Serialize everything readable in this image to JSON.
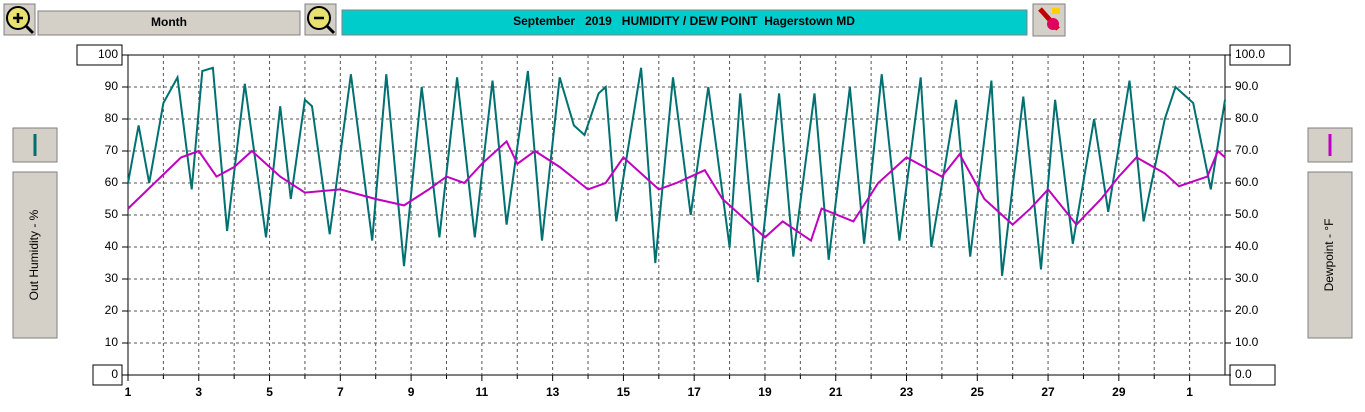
{
  "toolbar": {
    "period": "Month"
  },
  "chart_data": {
    "type": "line",
    "title": "September   2019   HUMIDITY / DEW POINT  Hagerstown MD",
    "ylabel": "Out Humidity - %",
    "y2label": "Dewpoint - °F",
    "xlim": [
      1,
      32
    ],
    "xticks": [
      1,
      3,
      5,
      7,
      9,
      11,
      13,
      15,
      17,
      19,
      21,
      23,
      25,
      27,
      29,
      {
        "value": 31,
        "label": "1"
      }
    ],
    "xminor_ticks": [
      2,
      4,
      6,
      8,
      10,
      12,
      14,
      16,
      18,
      20,
      22,
      24,
      26,
      28,
      30
    ],
    "ylim": [
      0,
      100
    ],
    "yticks": [
      0,
      10,
      20,
      30,
      40,
      50,
      60,
      70,
      80,
      90,
      100
    ],
    "y2lim": [
      0,
      100
    ],
    "y2ticks": [
      {
        "value": 0,
        "label": "0.0"
      },
      {
        "value": 10,
        "label": "10.0"
      },
      {
        "value": 20,
        "label": "20.0"
      },
      {
        "value": 30,
        "label": "30.0"
      },
      {
        "value": 40,
        "label": "40.0"
      },
      {
        "value": 50,
        "label": "50.0"
      },
      {
        "value": 60,
        "label": "60.0"
      },
      {
        "value": 70,
        "label": "70.0"
      },
      {
        "value": 80,
        "label": "80.0"
      },
      {
        "value": 90,
        "label": "90.0"
      },
      {
        "value": 100,
        "label": "100.0"
      }
    ],
    "grid": true,
    "series": [
      {
        "color": "#007070",
        "x": [
          1.0,
          1.3,
          1.6,
          2.0,
          2.4,
          2.8,
          3.1,
          3.4,
          3.8,
          4.3,
          4.9,
          5.3,
          5.6,
          6.0,
          6.2,
          6.7,
          7.3,
          7.9,
          8.3,
          8.8,
          9.3,
          9.8,
          10.3,
          10.8,
          11.3,
          11.7,
          12.3,
          12.7,
          13.2,
          13.6,
          13.9,
          14.3,
          14.5,
          14.8,
          15.5,
          15.9,
          16.4,
          16.9,
          17.4,
          18.0,
          18.3,
          18.8,
          19.4,
          19.8,
          20.4,
          20.8,
          21.4,
          21.8,
          22.3,
          22.8,
          23.4,
          23.7,
          24.4,
          24.8,
          25.4,
          25.7,
          26.3,
          26.8,
          27.2,
          27.7,
          28.3,
          28.7,
          29.3,
          29.7,
          30.3,
          30.6,
          31.1,
          31.6,
          32.0
        ],
        "values": [
          60,
          78,
          60,
          85,
          93,
          58,
          95,
          96,
          45,
          91,
          43,
          84,
          55,
          86,
          84,
          44,
          94,
          42,
          94,
          34,
          90,
          43,
          93,
          43,
          92,
          47,
          95,
          42,
          93,
          78,
          75,
          88,
          90,
          48,
          96,
          35,
          93,
          50,
          90,
          40,
          88,
          29,
          88,
          37,
          88,
          36,
          90,
          41,
          94,
          42,
          93,
          40,
          86,
          37,
          92,
          31,
          87,
          33,
          86,
          41,
          80,
          51,
          92,
          48,
          80,
          90,
          85,
          58,
          86
        ]
      },
      {
        "color": "#c000c0",
        "axis": "y2",
        "x": [
          1.0,
          2.5,
          3.0,
          3.5,
          4.0,
          4.5,
          5.3,
          6.0,
          7.0,
          8.0,
          8.8,
          9.5,
          10.0,
          10.5,
          11.0,
          11.7,
          12.0,
          12.5,
          13.2,
          14.0,
          14.5,
          15.0,
          16.0,
          16.5,
          17.3,
          17.8,
          18.5,
          19.0,
          19.5,
          20.3,
          20.6,
          21.5,
          22.2,
          23.0,
          24.0,
          24.5,
          25.2,
          26.0,
          26.5,
          27.0,
          27.8,
          28.5,
          29.0,
          29.5,
          30.3,
          30.7,
          31.5,
          31.8,
          32.0
        ],
        "values": [
          52,
          68,
          70,
          62,
          65,
          70,
          62,
          57,
          58,
          55,
          53,
          58,
          62,
          60,
          66,
          73,
          66,
          70,
          65,
          58,
          60,
          68,
          58,
          60,
          64,
          55,
          48,
          43,
          48,
          42,
          52,
          48,
          60,
          68,
          62,
          69,
          55,
          47,
          52,
          58,
          47,
          55,
          62,
          68,
          63,
          59,
          62,
          70,
          68
        ]
      }
    ]
  }
}
